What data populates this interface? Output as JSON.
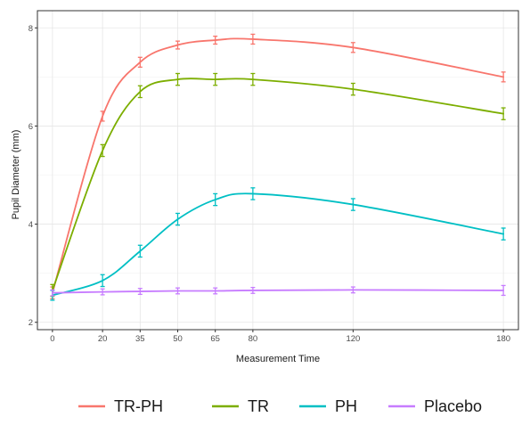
{
  "chart_data": {
    "type": "line",
    "xlabel": "Measurement Time",
    "ylabel": "Pupil Diameter (mm)",
    "xlim": [
      -6,
      186
    ],
    "ylim": [
      1.85,
      8.35
    ],
    "x_ticks": [
      0,
      20,
      35,
      50,
      65,
      80,
      120,
      180
    ],
    "y_ticks": [
      2,
      4,
      6,
      8
    ],
    "grid": true,
    "legend_position": "bottom",
    "x": [
      0,
      20,
      35,
      50,
      65,
      80,
      120,
      180
    ],
    "series": [
      {
        "name": "TR-PH",
        "color": "#f8766d",
        "values": [
          2.6,
          6.2,
          7.3,
          7.65,
          7.75,
          7.77,
          7.6,
          7.0
        ],
        "errors": [
          0.12,
          0.1,
          0.1,
          0.08,
          0.08,
          0.1,
          0.1,
          0.1
        ]
      },
      {
        "name": "TR",
        "color": "#7cae00",
        "values": [
          2.65,
          5.5,
          6.7,
          6.95,
          6.95,
          6.95,
          6.75,
          6.25
        ],
        "errors": [
          0.12,
          0.12,
          0.12,
          0.12,
          0.12,
          0.12,
          0.12,
          0.12
        ]
      },
      {
        "name": "PH",
        "color": "#00bfc4",
        "values": [
          2.55,
          2.85,
          3.45,
          4.1,
          4.5,
          4.62,
          4.4,
          3.8
        ],
        "errors": [
          0.1,
          0.12,
          0.12,
          0.12,
          0.12,
          0.12,
          0.12,
          0.12
        ]
      },
      {
        "name": "Placebo",
        "color": "#c77cff",
        "values": [
          2.6,
          2.62,
          2.63,
          2.64,
          2.64,
          2.65,
          2.66,
          2.65
        ],
        "errors": [
          0.06,
          0.06,
          0.06,
          0.06,
          0.06,
          0.06,
          0.06,
          0.1
        ]
      }
    ]
  }
}
